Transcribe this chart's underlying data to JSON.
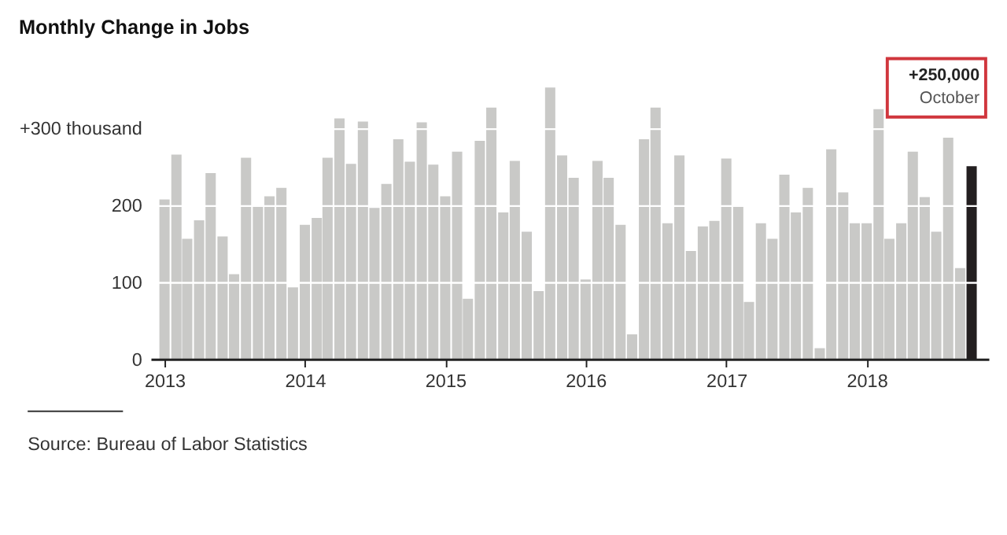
{
  "chart_data": {
    "type": "bar",
    "title": "Monthly Change in Jobs",
    "x": [
      "2013-01",
      "2013-02",
      "2013-03",
      "2013-04",
      "2013-05",
      "2013-06",
      "2013-07",
      "2013-08",
      "2013-09",
      "2013-10",
      "2013-11",
      "2013-12",
      "2014-01",
      "2014-02",
      "2014-03",
      "2014-04",
      "2014-05",
      "2014-06",
      "2014-07",
      "2014-08",
      "2014-09",
      "2014-10",
      "2014-11",
      "2014-12",
      "2015-01",
      "2015-02",
      "2015-03",
      "2015-04",
      "2015-05",
      "2015-06",
      "2015-07",
      "2015-08",
      "2015-09",
      "2015-10",
      "2015-11",
      "2015-12",
      "2016-01",
      "2016-02",
      "2016-03",
      "2016-04",
      "2016-05",
      "2016-06",
      "2016-07",
      "2016-08",
      "2016-09",
      "2016-10",
      "2016-11",
      "2016-12",
      "2017-01",
      "2017-02",
      "2017-03",
      "2017-04",
      "2017-05",
      "2017-06",
      "2017-07",
      "2017-08",
      "2017-09",
      "2017-10",
      "2017-11",
      "2017-12",
      "2018-01",
      "2018-02",
      "2018-03",
      "2018-04",
      "2018-05",
      "2018-06",
      "2018-07",
      "2018-08",
      "2018-09",
      "2018-10"
    ],
    "values": [
      207,
      265,
      156,
      180,
      241,
      159,
      110,
      261,
      199,
      211,
      222,
      93,
      174,
      183,
      261,
      312,
      253,
      308,
      196,
      227,
      285,
      256,
      307,
      252,
      211,
      269,
      78,
      283,
      326,
      190,
      257,
      165,
      88,
      352,
      264,
      235,
      103,
      257,
      235,
      174,
      32,
      285,
      326,
      176,
      264,
      140,
      172,
      179,
      260,
      199,
      74,
      176,
      156,
      239,
      190,
      222,
      14,
      272,
      216,
      176,
      176,
      324,
      156,
      176,
      269,
      210,
      165,
      287,
      118,
      250
    ],
    "colors": [
      "#c9c9c7",
      "#c9c9c7",
      "#c9c9c7",
      "#c9c9c7",
      "#c9c9c7",
      "#c9c9c7",
      "#c9c9c7",
      "#c9c9c7",
      "#c9c9c7",
      "#c9c9c7",
      "#c9c9c7",
      "#c9c9c7",
      "#c9c9c7",
      "#c9c9c7",
      "#c9c9c7",
      "#c9c9c7",
      "#c9c9c7",
      "#c9c9c7",
      "#c9c9c7",
      "#c9c9c7",
      "#c9c9c7",
      "#c9c9c7",
      "#c9c9c7",
      "#c9c9c7",
      "#c9c9c7",
      "#c9c9c7",
      "#c9c9c7",
      "#c9c9c7",
      "#c9c9c7",
      "#c9c9c7",
      "#c9c9c7",
      "#c9c9c7",
      "#c9c9c7",
      "#c9c9c7",
      "#c9c9c7",
      "#c9c9c7",
      "#c9c9c7",
      "#c9c9c7",
      "#c9c9c7",
      "#c9c9c7",
      "#c9c9c7",
      "#c9c9c7",
      "#c9c9c7",
      "#c9c9c7",
      "#c9c9c7",
      "#c9c9c7",
      "#c9c9c7",
      "#c9c9c7",
      "#c9c9c7",
      "#c9c9c7",
      "#c9c9c7",
      "#c9c9c7",
      "#c9c9c7",
      "#c9c9c7",
      "#c9c9c7",
      "#c9c9c7",
      "#c9c9c7",
      "#c9c9c7",
      "#c9c9c7",
      "#c9c9c7",
      "#c9c9c7",
      "#c9c9c7",
      "#c9c9c7",
      "#c9c9c7",
      "#c9c9c7",
      "#c9c9c7",
      "#c9c9c7",
      "#c9c9c7",
      "#c9c9c7",
      "#231f20"
    ],
    "xlim": [
      "2012-12-16",
      "2018-10-25"
    ],
    "xticks": [
      {
        "value": "2013-01",
        "label": "2013"
      },
      {
        "value": "2014-01",
        "label": "2014"
      },
      {
        "value": "2015-01",
        "label": "2015"
      },
      {
        "value": "2016-01",
        "label": "2016"
      },
      {
        "value": "2017-01",
        "label": "2017"
      },
      {
        "value": "2018-01",
        "label": "2018"
      }
    ],
    "ylim": [
      0,
      355
    ],
    "yticks": [
      0,
      100,
      200,
      {
        "value": 300,
        "label": "+300 thousand"
      }
    ],
    "grid": "y",
    "annotations": [
      "+250,000",
      "October",
      "Source: Bureau of Labor Statistics"
    ]
  }
}
